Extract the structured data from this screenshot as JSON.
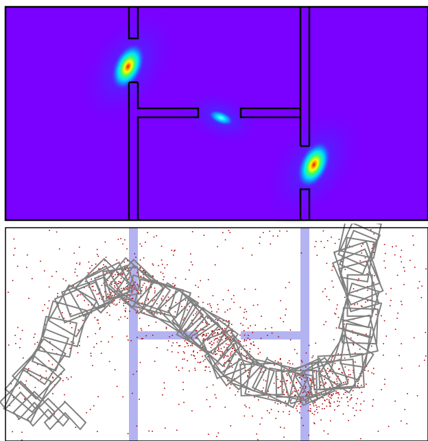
{
  "colors": {
    "heatmap_background": "#7a00ff",
    "heatmap_low": "#1f1fff",
    "heatmap_mid": "#00e5ff",
    "heatmap_high": "#ffff00",
    "heatmap_peak": "#ff0000",
    "wall_outline": "#000000",
    "wall_fill_lower": "#b3b3f2",
    "configuration_stroke": "#808080",
    "sample_points": "#b00000"
  },
  "icons": {
    "heatmap": "density-heatmap",
    "trajectory": "robot-configuration-trajectory"
  },
  "chart_data": [
    {
      "type": "heatmap",
      "title": "",
      "xlabel": "",
      "ylabel": "",
      "grid": false,
      "legend": "none",
      "hotspots": [
        {
          "x": 0.29,
          "y": 0.28,
          "intensity": 1.0,
          "extent": 0.11
        },
        {
          "x": 0.51,
          "y": 0.52,
          "intensity": 0.45,
          "extent": 0.07
        },
        {
          "x": 0.73,
          "y": 0.74,
          "intensity": 1.0,
          "extent": 0.11
        }
      ]
    },
    {
      "type": "scatter",
      "title": "",
      "xlabel": "",
      "ylabel": "",
      "grid": false,
      "legend": "none",
      "series_count": 2
    }
  ]
}
